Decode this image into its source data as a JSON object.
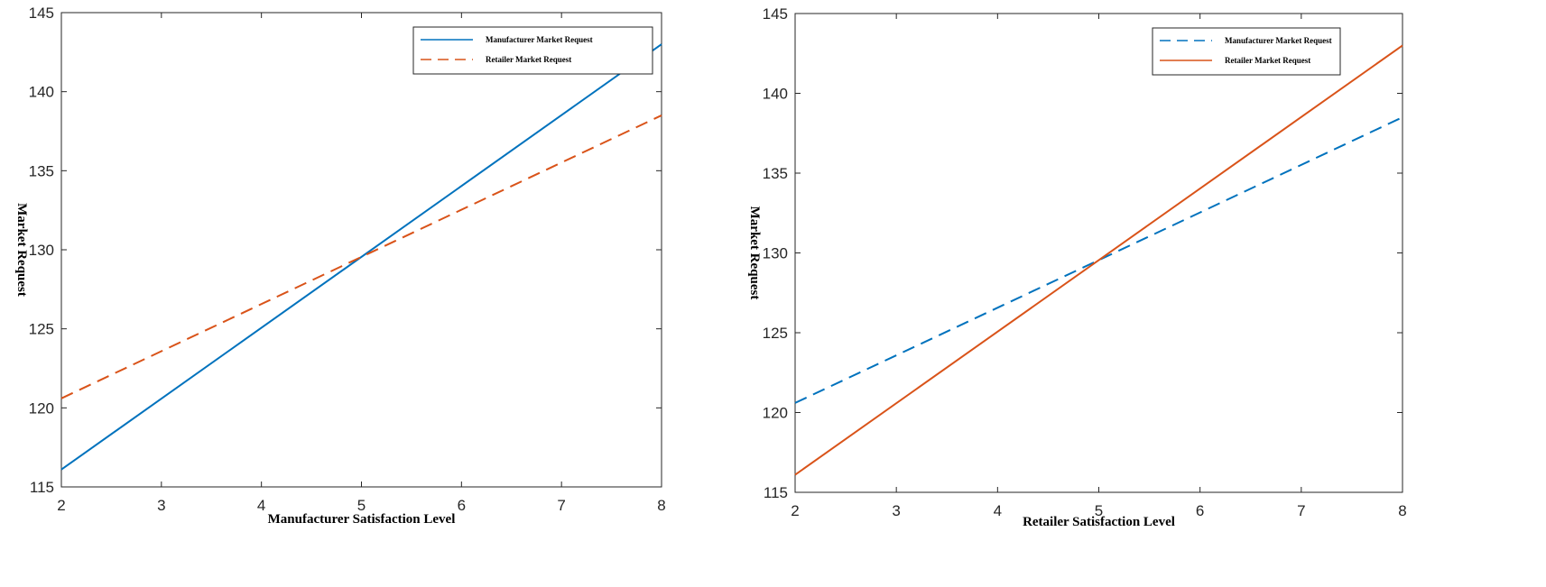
{
  "colors": {
    "blue": "#0072BD",
    "orange": "#D95319",
    "axis": "#262626"
  },
  "chart_data": [
    {
      "type": "line",
      "xlabel": "Manufacturer Satisfaction Level",
      "ylabel": "Market Request",
      "xlim": [
        2,
        8
      ],
      "ylim": [
        115,
        145
      ],
      "xticks": [
        "2",
        "3",
        "4",
        "5",
        "6",
        "7",
        "8"
      ],
      "yticks": [
        "115",
        "120",
        "125",
        "130",
        "135",
        "140",
        "145"
      ],
      "grid": false,
      "legend_position": "top-right",
      "series": [
        {
          "name": "Manufacturer Market Request",
          "color": "#0072BD",
          "dash": "solid",
          "x": [
            2,
            8
          ],
          "y": [
            116.1,
            143.0
          ]
        },
        {
          "name": "Retailer Market Request",
          "color": "#D95319",
          "dash": "dashed",
          "x": [
            2,
            8
          ],
          "y": [
            120.6,
            138.5
          ]
        }
      ]
    },
    {
      "type": "line",
      "xlabel": "Retailer Satisfaction Level",
      "ylabel": "Market Request",
      "xlim": [
        2,
        8
      ],
      "ylim": [
        115,
        145
      ],
      "xticks": [
        "2",
        "3",
        "4",
        "5",
        "6",
        "7",
        "8"
      ],
      "yticks": [
        "115",
        "120",
        "125",
        "130",
        "135",
        "140",
        "145"
      ],
      "grid": false,
      "legend_position": "top-right",
      "series": [
        {
          "name": "Manufacturer Market Request",
          "color": "#0072BD",
          "dash": "dashed",
          "x": [
            2,
            8
          ],
          "y": [
            120.6,
            138.5
          ]
        },
        {
          "name": "Retailer Market Request",
          "color": "#D95319",
          "dash": "solid",
          "x": [
            2,
            8
          ],
          "y": [
            116.1,
            143.0
          ]
        }
      ]
    }
  ]
}
